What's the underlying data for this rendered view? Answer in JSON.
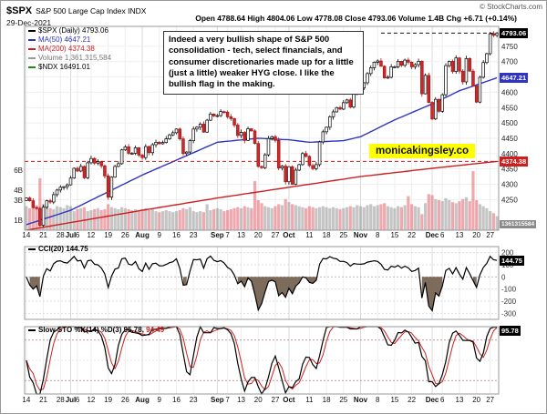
{
  "header": {
    "symbol": "$SPX",
    "name": "S&P 500 Large Cap Index INDX",
    "date": "29-Dec-2021",
    "copyright": "© StockCharts.com",
    "quote": [
      {
        "k": "Open",
        "v": "4788.64"
      },
      {
        "k": "High",
        "v": "4804.06"
      },
      {
        "k": "Low",
        "v": "4778.08"
      },
      {
        "k": "Close",
        "v": "4793.06"
      },
      {
        "k": "Volume",
        "v": "1.4B"
      },
      {
        "k": "Chg",
        "v": "+6.71 (+0.14%)"
      }
    ]
  },
  "legend": {
    "items": [
      {
        "label": "$SPX (Daily)",
        "value": "4793.06",
        "dash": "#000000",
        "color": "#000000"
      },
      {
        "label": "MA(50)",
        "value": "4647.21",
        "dash": "#2f35c0",
        "color": "#2f35c0"
      },
      {
        "label": "MA(200)",
        "value": "4374.38",
        "dash": "#cc2020",
        "color": "#cc2020"
      },
      {
        "label": "Volume",
        "value": "1,361,315,584",
        "dash": "#9a9a9a",
        "color": "#777777"
      },
      {
        "label": "$NDX",
        "value": "16491.01",
        "dash": "#1a8a1a",
        "color": "#000000"
      }
    ]
  },
  "annotation": {
    "text": "Indeed a very bullish shape of S&P 500 consolidation - tech, select financials, and consumer discretionaries made up for a little (just a little) weaker HYG close. I like the bullish flag in the making."
  },
  "watermark": {
    "text": "monicakingsley.co",
    "bg": "#ffff00"
  },
  "price_labels": {
    "last": "4793.06",
    "ma50": "4647.21",
    "ma200": "4374.38",
    "volume": "1361315584"
  },
  "chart_data": {
    "type": "candlestick",
    "title": "$SPX Daily with MA(50), MA(200), Volume, CCI(20), Slow Stochastic",
    "price_axis": {
      "min": 4150,
      "max": 4815,
      "labels": [
        4750,
        4700,
        4650,
        4600,
        4550,
        4500,
        4450,
        4400,
        4350,
        4300,
        4250
      ]
    },
    "volume_axis_labels": [
      {
        "v": 6,
        "t": "6B"
      },
      {
        "v": 4,
        "t": "4B"
      },
      {
        "v": 3,
        "t": "3B"
      },
      {
        "v": 1,
        "t": "1B"
      }
    ],
    "x_tick_labels": [
      {
        "i": 0,
        "t": "14"
      },
      {
        "i": 5,
        "t": "21"
      },
      {
        "i": 10,
        "t": "28"
      },
      {
        "i": 13,
        "t": "Jul",
        "m": 1
      },
      {
        "i": 15,
        "t": "6"
      },
      {
        "i": 19,
        "t": "12"
      },
      {
        "i": 24,
        "t": "19"
      },
      {
        "i": 29,
        "t": "26"
      },
      {
        "i": 34,
        "t": "Aug",
        "m": 1
      },
      {
        "i": 39,
        "t": "9"
      },
      {
        "i": 44,
        "t": "16"
      },
      {
        "i": 49,
        "t": "23"
      },
      {
        "i": 56,
        "t": "Sep",
        "m": 1
      },
      {
        "i": 59,
        "t": "7"
      },
      {
        "i": 63,
        "t": "13"
      },
      {
        "i": 68,
        "t": "20"
      },
      {
        "i": 73,
        "t": "27"
      },
      {
        "i": 77,
        "t": "Oct",
        "m": 1
      },
      {
        "i": 83,
        "t": "11"
      },
      {
        "i": 88,
        "t": "18"
      },
      {
        "i": 93,
        "t": "25"
      },
      {
        "i": 98,
        "t": "Nov",
        "m": 1
      },
      {
        "i": 103,
        "t": "8"
      },
      {
        "i": 108,
        "t": "15"
      },
      {
        "i": 113,
        "t": "22"
      },
      {
        "i": 119,
        "t": "Dec",
        "m": 1
      },
      {
        "i": 122,
        "t": "6"
      },
      {
        "i": 127,
        "t": "13"
      },
      {
        "i": 132,
        "t": "20"
      },
      {
        "i": 136,
        "t": "27"
      }
    ],
    "closes": [
      4255,
      4246,
      4224,
      4221,
      4166,
      4225,
      4246,
      4242,
      4266,
      4281,
      4290,
      4292,
      4298,
      4320,
      4352,
      4343,
      4358,
      4321,
      4370,
      4384,
      4369,
      4374,
      4360,
      4327,
      4258,
      4323,
      4358,
      4367,
      4412,
      4422,
      4401,
      4401,
      4419,
      4395,
      4387,
      4423,
      4403,
      4429,
      4437,
      4432,
      4436,
      4448,
      4461,
      4468,
      4480,
      4448,
      4400,
      4405,
      4442,
      4480,
      4486,
      4496,
      4470,
      4509,
      4529,
      4523,
      4524,
      4537,
      4535,
      4520,
      4514,
      4493,
      4459,
      4469,
      4443,
      4481,
      4474,
      4433,
      4358,
      4354,
      4396,
      4449,
      4455,
      4443,
      4353,
      4359,
      4308,
      4357,
      4300,
      4346,
      4364,
      4400,
      4391,
      4361,
      4351,
      4364,
      4438,
      4471,
      4486,
      4520,
      4536,
      4550,
      4545,
      4566,
      4575,
      4552,
      4596,
      4605,
      4614,
      4631,
      4661,
      4680,
      4698,
      4702,
      4685,
      4647,
      4649,
      4683,
      4683,
      4701,
      4688,
      4705,
      4698,
      4683,
      4690,
      4701,
      4595,
      4655,
      4567,
      4513,
      4577,
      4538,
      4592,
      4687,
      4701,
      4668,
      4712,
      4669,
      4634,
      4710,
      4669,
      4621,
      4568,
      4649,
      4697,
      4726,
      4791,
      4786,
      4793.06
    ],
    "volumes_b": [
      2.4,
      2.2,
      2.3,
      2.5,
      5.2,
      2.6,
      2.3,
      2.2,
      2.1,
      2.4,
      2.3,
      2.2,
      2.5,
      2.4,
      1.9,
      2.1,
      2.2,
      2.3,
      1.9,
      2.0,
      2.1,
      2.2,
      2.0,
      2.1,
      2.6,
      2.3,
      2.2,
      2.1,
      2.3,
      2.2,
      2.1,
      2.0,
      2.1,
      2.0,
      2.1,
      2.2,
      2.0,
      2.1,
      1.9,
      1.8,
      1.9,
      2.0,
      1.9,
      1.8,
      1.9,
      2.0,
      2.2,
      2.1,
      2.3,
      1.9,
      1.8,
      1.9,
      1.8,
      2.6,
      2.0,
      2.1,
      2.2,
      2.1,
      1.9,
      2.0,
      2.1,
      2.2,
      2.3,
      2.2,
      2.4,
      2.3,
      2.2,
      4.9,
      3.0,
      2.7,
      2.4,
      2.3,
      2.2,
      2.4,
      2.6,
      2.5,
      3.1,
      2.8,
      2.6,
      2.5,
      2.4,
      2.3,
      2.2,
      2.4,
      2.3,
      2.2,
      2.3,
      2.4,
      2.3,
      2.2,
      2.3,
      2.2,
      2.1,
      2.2,
      2.3,
      2.4,
      2.3,
      2.5,
      2.4,
      2.3,
      2.5,
      2.6,
      2.4,
      2.5,
      2.6,
      2.7,
      2.4,
      2.3,
      2.2,
      2.4,
      2.3,
      2.5,
      3.4,
      2.6,
      2.4,
      2.3,
      1.6,
      2.7,
      3.6,
      3.5,
      3.1,
      3.0,
      2.9,
      3.2,
      3.0,
      2.8,
      2.7,
      2.9,
      3.1,
      3.3,
      2.9,
      5.9,
      3.0,
      2.6,
      2.4,
      2.2,
      1.9,
      1.7,
      1.4
    ],
    "ma50_anchors": [
      [
        0,
        4168
      ],
      [
        13,
        4215
      ],
      [
        34,
        4330
      ],
      [
        56,
        4437
      ],
      [
        68,
        4450
      ],
      [
        77,
        4445
      ],
      [
        83,
        4437
      ],
      [
        93,
        4442
      ],
      [
        98,
        4455
      ],
      [
        108,
        4510
      ],
      [
        119,
        4562
      ],
      [
        127,
        4605
      ],
      [
        138,
        4647.21
      ]
    ],
    "ma200_anchors": [
      [
        0,
        4150
      ],
      [
        13,
        4175
      ],
      [
        34,
        4215
      ],
      [
        56,
        4255
      ],
      [
        77,
        4290
      ],
      [
        98,
        4325
      ],
      [
        119,
        4352
      ],
      [
        138,
        4374.38
      ]
    ],
    "support_line": 4374.38,
    "cci": {
      "label": "CCI(20)",
      "value": "144.75",
      "axis": [
        200,
        100,
        0,
        -100,
        -200,
        -300
      ],
      "range": [
        -350,
        250
      ]
    },
    "sto": {
      "label": "Slow STO %K(14) %D(3)",
      "k": "95.78",
      "sep": ", ",
      "d": "94.49",
      "overbought": 80,
      "oversold": 20
    }
  }
}
